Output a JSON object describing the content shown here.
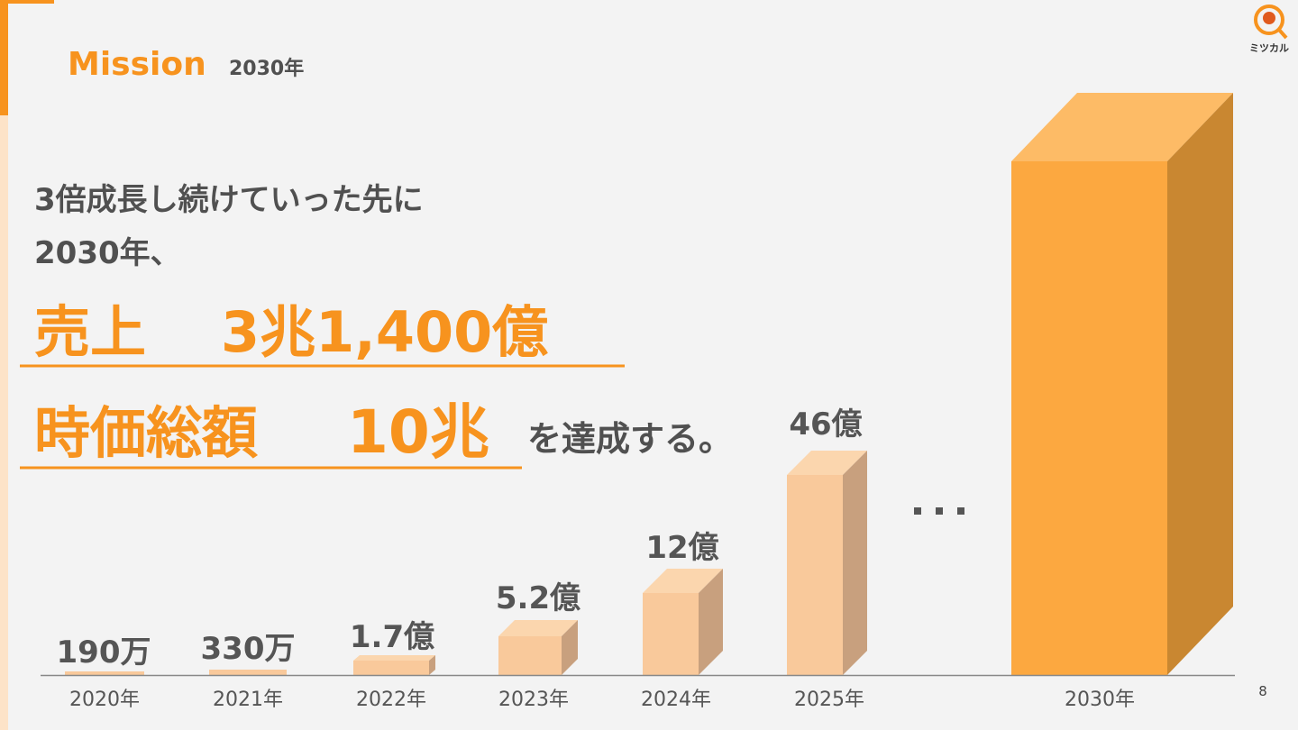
{
  "header": {
    "title": "Mission",
    "subtitle": "2030年"
  },
  "logo": {
    "text": "ミツカル"
  },
  "body": {
    "lines": [
      "3倍成長し続けていった先に",
      "2030年、"
    ],
    "sales": {
      "label": "売上",
      "value": "3兆1,400億"
    },
    "market_cap": {
      "label": "時価総額",
      "value": "10兆"
    },
    "suffix": "を達成する。"
  },
  "bars": [
    {
      "year": "2020年",
      "label": "190万"
    },
    {
      "year": "2021年",
      "label": "330万"
    },
    {
      "year": "2022年",
      "label": "1.7億"
    },
    {
      "year": "2023年",
      "label": "5.2億"
    },
    {
      "year": "2024年",
      "label": "12億"
    },
    {
      "year": "2025年",
      "label": "46億"
    },
    {
      "year": "2030年"
    }
  ],
  "page_number": "8"
}
